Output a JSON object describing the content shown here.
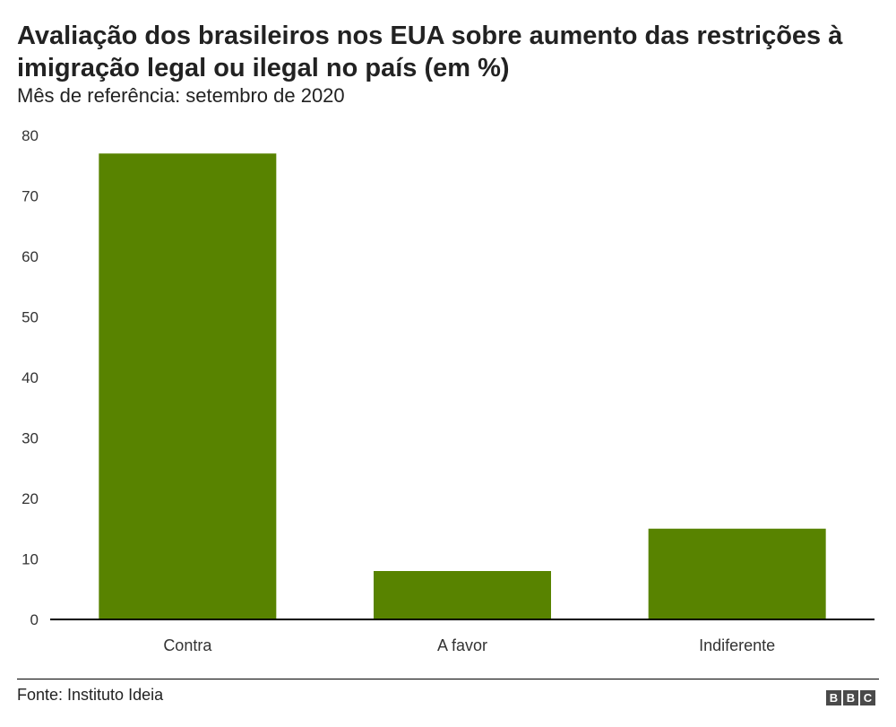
{
  "chart_data": {
    "type": "bar",
    "title": "Avaliação dos brasileiros nos EUA sobre aumento das restrições à imigração legal ou ilegal no país (em %)",
    "subtitle": "Mês de referência: setembro de 2020",
    "categories": [
      "Contra",
      "A favor",
      "Indiferente"
    ],
    "values": [
      77,
      8,
      15
    ],
    "ylim": [
      0,
      80
    ],
    "yticks": [
      "0",
      "10",
      "20",
      "30",
      "40",
      "50",
      "60",
      "70",
      "80"
    ],
    "xlabel": "",
    "ylabel": "",
    "grid": false,
    "legend": "none",
    "bar_color": "#588300",
    "axis_color": "#000000"
  },
  "footer": {
    "source": "Fonte: Instituto Ideia",
    "logo_letters": [
      "B",
      "B",
      "C"
    ]
  }
}
